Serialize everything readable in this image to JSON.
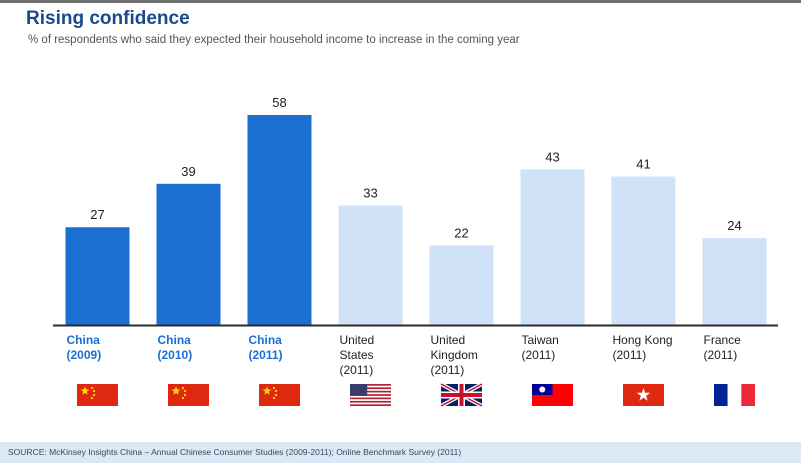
{
  "colors": {
    "highlight": "#1a6fd1",
    "other": "#cfe2f7",
    "highlight_label": "#1a6fd1",
    "other_label": "#222222",
    "axis": "#2b2b2b"
  },
  "chart_data": {
    "type": "bar",
    "title": "Rising confidence",
    "subtitle": "% of respondents who said they expected their household income to increase in the coming year",
    "categories": [
      [
        "China",
        "(2009)"
      ],
      [
        "China",
        "(2010)"
      ],
      [
        "China",
        "(2011)"
      ],
      [
        "United",
        "States",
        "(2011)"
      ],
      [
        "United",
        "Kingdom",
        "(2011)"
      ],
      [
        "Taiwan",
        "(2011)"
      ],
      [
        "Hong Kong",
        "(2011)"
      ],
      [
        "France",
        "(2011)"
      ]
    ],
    "values": [
      27,
      39,
      58,
      33,
      22,
      43,
      41,
      24
    ],
    "highlighted": [
      true,
      true,
      true,
      false,
      false,
      false,
      false,
      false
    ],
    "flags": [
      "china-flag-icon",
      "china-flag-icon",
      "china-flag-icon",
      "usa-flag-icon",
      "uk-flag-icon",
      "taiwan-flag-icon",
      "hong-kong-flag-icon",
      "france-flag-icon"
    ],
    "ylim": [
      0,
      58
    ],
    "grid": false,
    "source": "SOURCE: McKinsey Insights China – Annual Chinese Consumer Studies (2009-2011); Online Benchmark Survey (2011)"
  }
}
